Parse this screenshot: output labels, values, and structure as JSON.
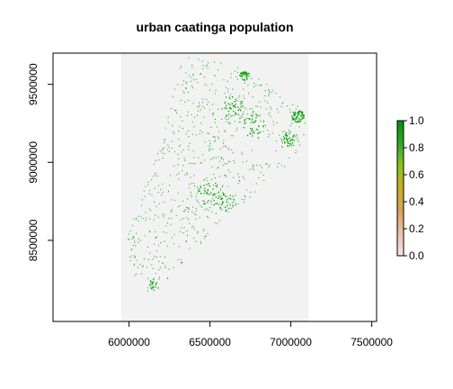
{
  "chart_data": {
    "type": "raster",
    "title": "urban caatinga population",
    "xlabel": "",
    "ylabel": "",
    "xlim": [
      5530000,
      7530000
    ],
    "ylim": [
      7980000,
      9700000
    ],
    "x_ticks": [
      6000000,
      6500000,
      7000000,
      7500000
    ],
    "x_tick_labels": [
      "6000000",
      "6500000",
      "7000000",
      "7500000"
    ],
    "y_ticks": [
      8500000,
      9000000,
      9500000
    ],
    "y_tick_labels": [
      "8500000",
      "9000000",
      "9500000"
    ],
    "raster_extent": {
      "x": [
        5950000,
        7110000
      ],
      "y": [
        7980000,
        9700000
      ]
    },
    "na_color": "#f2f2f2",
    "point_color": "#00a000",
    "legend": {
      "ticks": [
        0.0,
        0.2,
        0.4,
        0.6,
        0.8,
        1.0
      ],
      "tick_labels": [
        "0.0",
        "0.2",
        "0.4",
        "0.6",
        "0.8",
        "1.0"
      ],
      "colors": [
        "#f5e6e6",
        "#e8c2a8",
        "#d9a060",
        "#c8b020",
        "#8cc41a",
        "#2ea82e",
        "#009400"
      ]
    },
    "region_outline": [
      [
        6340000,
        9680000
      ],
      [
        6560000,
        9650000
      ],
      [
        6740000,
        9600000
      ],
      [
        6950000,
        9430000
      ],
      [
        7060000,
        9350000
      ],
      [
        7090000,
        9250000
      ],
      [
        7070000,
        9120000
      ],
      [
        6990000,
        9010000
      ],
      [
        6890000,
        8900000
      ],
      [
        6760000,
        8790000
      ],
      [
        6640000,
        8690000
      ],
      [
        6530000,
        8580000
      ],
      [
        6420000,
        8460000
      ],
      [
        6310000,
        8330000
      ],
      [
        6160000,
        8170000
      ],
      [
        6110000,
        8160000
      ],
      [
        6040000,
        8250000
      ],
      [
        6000000,
        8380000
      ],
      [
        5990000,
        8520000
      ],
      [
        6020000,
        8650000
      ],
      [
        6080000,
        8800000
      ],
      [
        6140000,
        8960000
      ],
      [
        6190000,
        9120000
      ],
      [
        6240000,
        9300000
      ],
      [
        6280000,
        9480000
      ],
      [
        6310000,
        9600000
      ]
    ],
    "clusters": [
      {
        "x": 6710000,
        "y": 9560000,
        "r": 30000,
        "n": 40
      },
      {
        "x": 7040000,
        "y": 9300000,
        "r": 40000,
        "n": 60
      },
      {
        "x": 6990000,
        "y": 9150000,
        "r": 50000,
        "n": 40
      },
      {
        "x": 6630000,
        "y": 9360000,
        "r": 70000,
        "n": 40
      },
      {
        "x": 6750000,
        "y": 9250000,
        "r": 80000,
        "n": 40
      },
      {
        "x": 6500000,
        "y": 8800000,
        "r": 80000,
        "n": 40
      },
      {
        "x": 6600000,
        "y": 8750000,
        "r": 60000,
        "n": 30
      },
      {
        "x": 6160000,
        "y": 8220000,
        "r": 40000,
        "n": 20
      }
    ],
    "random_points": 700
  }
}
